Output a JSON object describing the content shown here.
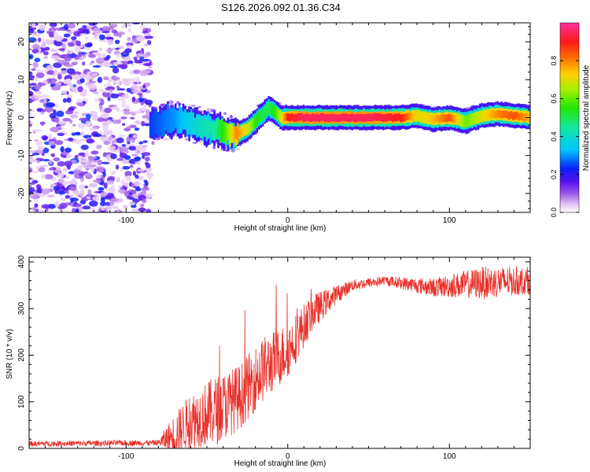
{
  "title": "S126.2026.092.01.36.C34",
  "chart_data": [
    {
      "type": "heatmap",
      "xlabel": "Height of straight line (km)",
      "ylabel": "Frequency (Hz)",
      "xlim": [
        -160,
        150
      ],
      "ylim": [
        -25,
        25
      ],
      "x_ticks": [
        -100,
        0,
        100
      ],
      "y_ticks": [
        -20,
        -10,
        0,
        10,
        20
      ],
      "colorbar": {
        "label": "Normalized spectral amplitude",
        "range": [
          0,
          1
        ],
        "ticks": [
          0.0,
          0.2,
          0.4,
          0.6,
          0.8
        ]
      },
      "ridge_description": "Broadband noise for x < -85 km; ridge near 0 Hz for x > -85 km",
      "ridge": {
        "x": [
          -85,
          -70,
          -55,
          -45,
          -38,
          -32,
          -25,
          -20,
          -15,
          -12,
          -8,
          -4,
          0,
          10,
          30,
          50,
          70,
          80,
          90,
          100,
          110,
          120,
          130,
          140,
          150
        ],
        "freq": [
          -2,
          -0.5,
          -2,
          -3,
          -4,
          -4.5,
          -3,
          -1,
          1,
          2.5,
          1.5,
          0,
          0,
          0,
          0,
          0,
          0,
          0.5,
          -0.5,
          0,
          -1,
          0.5,
          1,
          0.5,
          0
        ],
        "amplitude": [
          0.25,
          0.3,
          0.4,
          0.45,
          0.6,
          0.8,
          0.7,
          0.55,
          0.5,
          0.5,
          0.55,
          0.7,
          0.9,
          0.95,
          0.95,
          0.95,
          0.9,
          0.7,
          0.75,
          0.85,
          0.6,
          0.7,
          0.8,
          0.85,
          0.75
        ]
      }
    },
    {
      "type": "line",
      "xlabel": "Height of straight line (km)",
      "ylabel": "SNR (10 * v/v)",
      "xlim": [
        -160,
        150
      ],
      "ylim": [
        0,
        410
      ],
      "x_ticks": [
        -100,
        0,
        100
      ],
      "y_ticks": [
        0,
        100,
        200,
        300,
        400
      ],
      "series": [
        {
          "name": "SNR",
          "color": "#e8302a",
          "trend_x": [
            -160,
            -80,
            -72,
            -60,
            -45,
            -30,
            -15,
            0,
            15,
            30,
            40,
            60,
            90,
            120,
            150
          ],
          "trend_y": [
            10,
            12,
            25,
            60,
            80,
            110,
            170,
            210,
            290,
            330,
            350,
            360,
            345,
            355,
            360
          ],
          "noise_amplitude": [
            6,
            6,
            40,
            60,
            75,
            70,
            70,
            60,
            40,
            20,
            12,
            10,
            20,
            35,
            30
          ]
        }
      ]
    }
  ]
}
